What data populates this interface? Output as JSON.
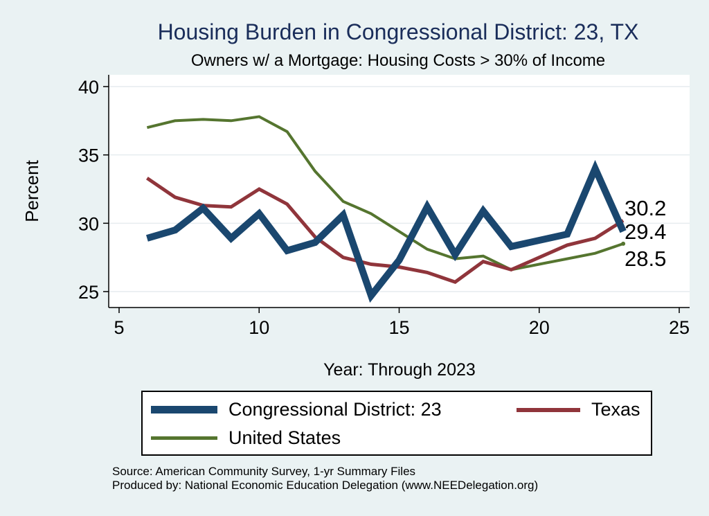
{
  "chart_data": {
    "type": "line",
    "title": "Housing Burden in Congressional District:  23, TX",
    "subtitle": "Owners w/ a Mortgage: Housing Costs > 30% of Income",
    "xlabel": "Year: Through 2023",
    "ylabel": "Percent",
    "xlim": [
      5,
      25
    ],
    "ylim": [
      24,
      41
    ],
    "xticks": [
      5,
      10,
      15,
      20,
      25
    ],
    "yticks": [
      25,
      30,
      35,
      40
    ],
    "grid": true,
    "legend_position": "bottom",
    "series": [
      {
        "name": "Congressional District:  23",
        "color": "#1a476f",
        "x": [
          6,
          7,
          8,
          9,
          10,
          11,
          12,
          13,
          14,
          15,
          16,
          17,
          18,
          19,
          21,
          22,
          23
        ],
        "y": [
          28.9,
          29.5,
          31.1,
          28.9,
          30.7,
          28.0,
          28.6,
          30.6,
          24.7,
          27.3,
          31.2,
          27.7,
          30.9,
          28.3,
          29.2,
          34.0,
          29.4
        ]
      },
      {
        "name": "Texas",
        "color": "#90353b",
        "x": [
          6,
          7,
          8,
          9,
          10,
          11,
          12,
          13,
          14,
          15,
          16,
          17,
          18,
          19,
          20,
          21,
          22,
          23
        ],
        "y": [
          33.3,
          31.9,
          31.3,
          31.2,
          32.5,
          31.4,
          29.0,
          27.5,
          27.0,
          26.8,
          26.4,
          25.7,
          27.2,
          26.6,
          27.5,
          28.4,
          28.9,
          30.2
        ]
      },
      {
        "name": "United States",
        "color": "#55752f",
        "x": [
          6,
          7,
          8,
          9,
          10,
          11,
          12,
          13,
          14,
          15,
          16,
          17,
          18,
          19,
          20,
          21,
          22,
          23
        ],
        "y": [
          37.0,
          37.5,
          37.6,
          37.5,
          37.8,
          36.7,
          33.8,
          31.6,
          30.7,
          29.4,
          28.1,
          27.4,
          27.6,
          26.6,
          27.0,
          27.4,
          27.8,
          28.5
        ]
      }
    ],
    "end_labels": [
      "30.2",
      "29.4",
      "28.5"
    ]
  },
  "source": {
    "line1": "Source: American Community Survey, 1-yr Summary Files",
    "line2": "Produced by: National Economic Education Delegation (www.NEEDelegation.org)"
  }
}
